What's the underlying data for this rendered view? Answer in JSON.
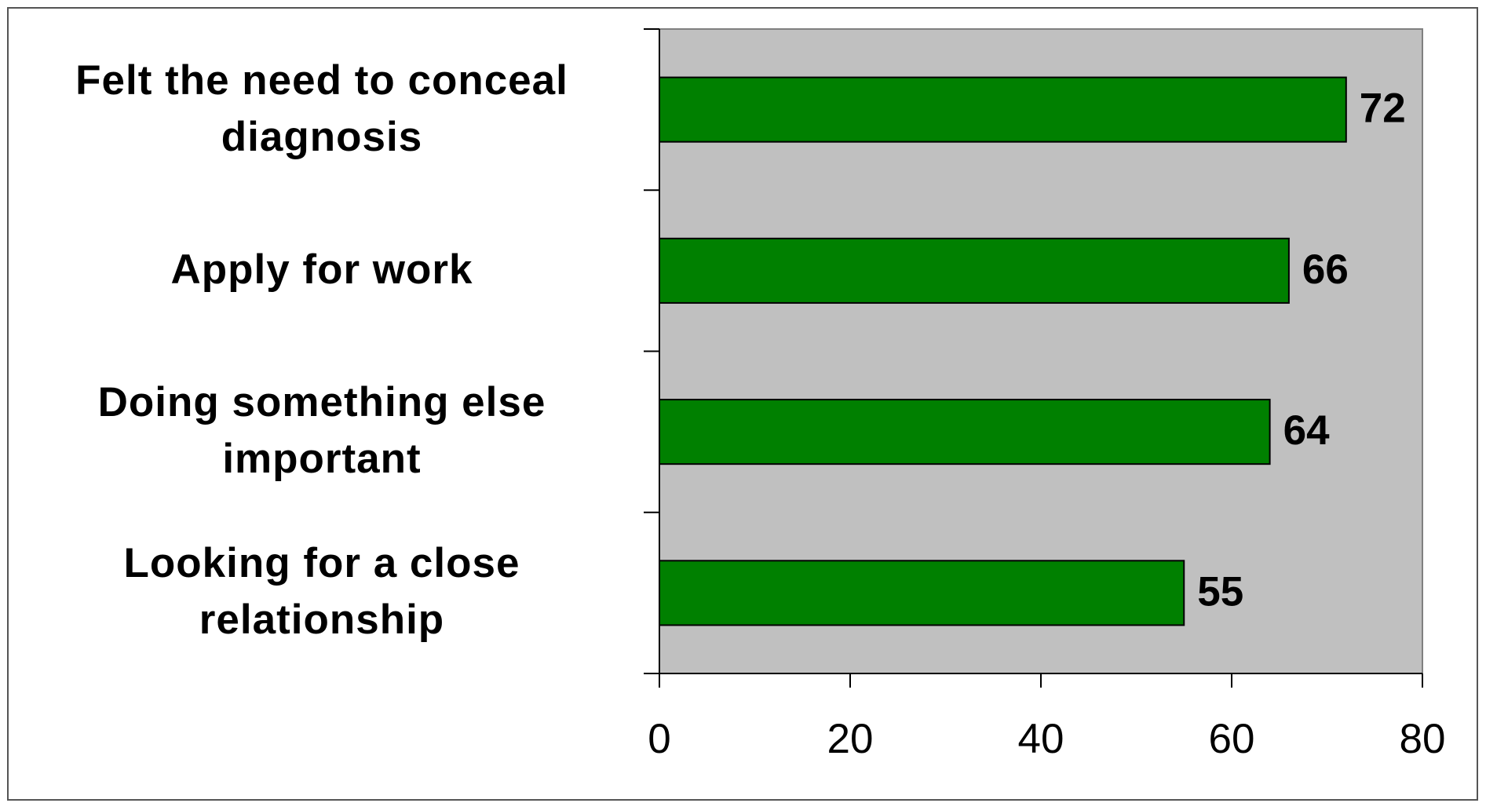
{
  "chart_data": {
    "type": "barh",
    "categories": [
      "Felt the need to conceal diagnosis",
      "Apply for work",
      "Doing something else important",
      "Looking for a close relationship"
    ],
    "values": [
      72,
      66,
      64,
      55
    ],
    "color": "#008000",
    "plot_background": "#c0c0c0",
    "xlim": [
      0,
      80
    ],
    "xticks": [
      0,
      20,
      40,
      60,
      80
    ]
  }
}
